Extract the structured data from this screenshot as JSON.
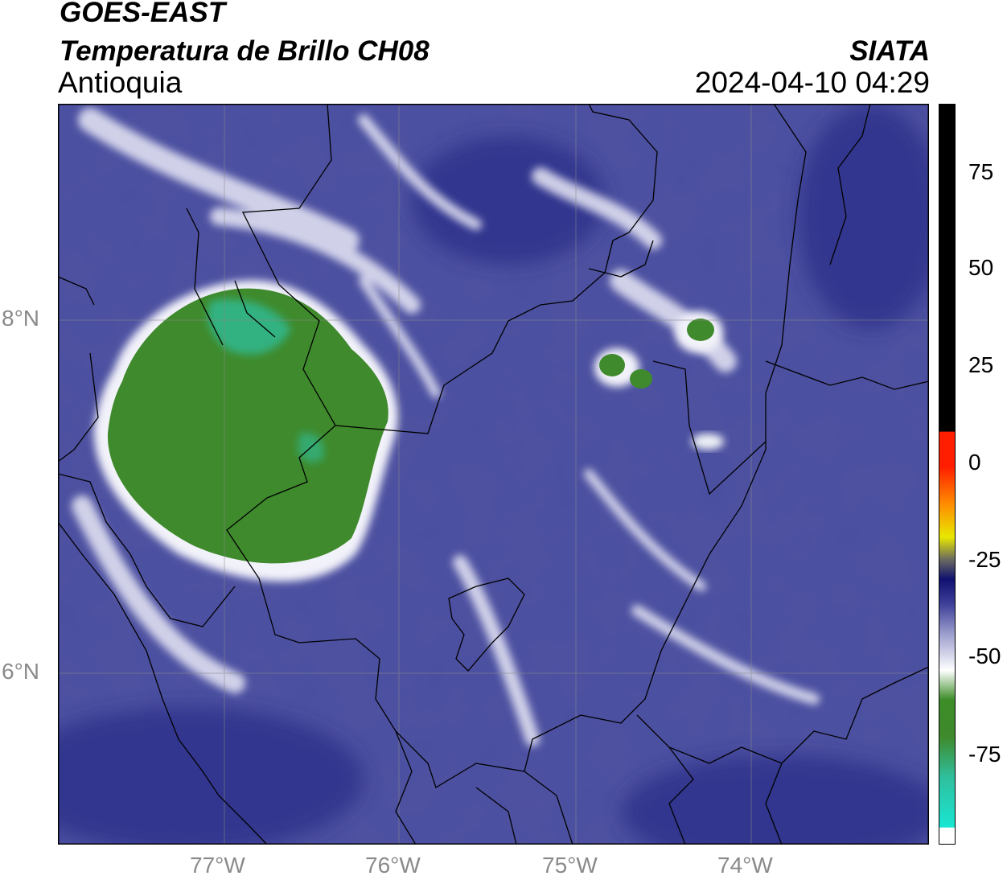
{
  "header": {
    "satellite": "GOES-EAST",
    "product": "Temperatura de Brillo CH08",
    "region": "Antioquia",
    "agency": "SIATA",
    "datetime": "2024-04-10 04:29"
  },
  "axes": {
    "lat_labels": [
      "8°N",
      "6°N"
    ],
    "lon_labels": [
      "77°W",
      "76°W",
      "75°W",
      "74°W"
    ]
  },
  "colorbar": {
    "ticks": [
      "75",
      "50",
      "25",
      "0",
      "-25",
      "-50",
      "-75"
    ],
    "tick_values": [
      75,
      50,
      25,
      0,
      -25,
      -50,
      -75
    ],
    "range": [
      -95,
      90
    ],
    "colors": {
      "cyan": "#19e6d2",
      "green": "#3c8c28",
      "white": "#ffffff",
      "blue_mid": "#5558a6",
      "navy": "#101070",
      "yellow": "#ffff00",
      "orange": "#ff8c00",
      "red": "#ff1e00",
      "black": "#000000"
    }
  },
  "map": {
    "extent_lon": [
      -77.95,
      -73.0
    ],
    "extent_lat": [
      4.95,
      9.15
    ],
    "background_color": "#4a4fa0",
    "cold_cloud_color": "#3f8a2c",
    "cloud_core_color": "#2fbf9e"
  }
}
